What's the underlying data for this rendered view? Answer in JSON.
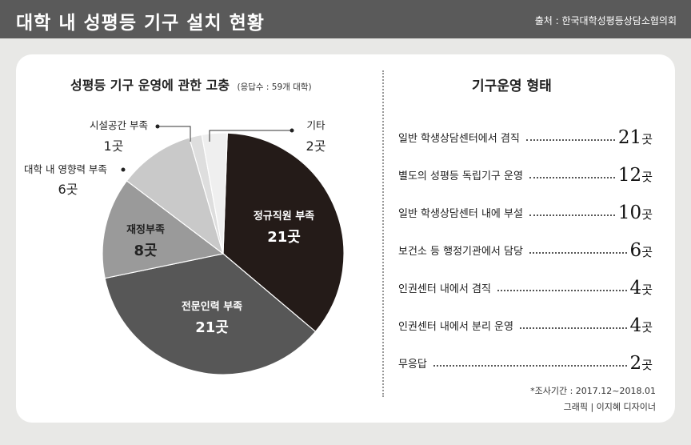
{
  "header": {
    "title": "대학 내 성평등 기구 설치 현황",
    "source": "출처 : 한국대학성평등상담소협의회"
  },
  "left_panel": {
    "title": "성평등 기구 운영에 관한 고충",
    "subtitle": "(응답수 : 59개 대학)"
  },
  "right_panel": {
    "title": "기구운영 형태",
    "rows": [
      {
        "label": "일반 학생상담센터에서 겸직",
        "value": "21",
        "unit": "곳"
      },
      {
        "label": "별도의 성평등 독립기구 운영",
        "value": "12",
        "unit": "곳"
      },
      {
        "label": "일반 학생상담센터 내에 부설",
        "value": "10",
        "unit": "곳"
      },
      {
        "label": "보건소 등 행정기관에서 담당",
        "value": "6",
        "unit": "곳"
      },
      {
        "label": "인권센터 내에서 겸직",
        "value": "4",
        "unit": "곳"
      },
      {
        "label": "인권센터 내에서 분리 운영",
        "value": "4",
        "unit": "곳"
      },
      {
        "label": "무응답",
        "value": "2",
        "unit": "곳"
      }
    ]
  },
  "notes": {
    "period": "*조사기간 : 2017.12~2018.01",
    "credit": "그래픽 | 이지혜 디자이너"
  },
  "chart_data": {
    "type": "pie",
    "title": "성평등 기구 운영에 관한 고충",
    "unit": "곳",
    "slices": [
      {
        "label": "정규직원 부족",
        "display": "21곳",
        "value": 21,
        "color": "#241b18"
      },
      {
        "label": "전문인력 부족",
        "display": "21곳",
        "value": 21,
        "color": "#575757"
      },
      {
        "label": "재정부족",
        "display": "8곳",
        "value": 8,
        "color": "#9a9a9a"
      },
      {
        "label": "대학 내 영향력 부족",
        "display": "6곳",
        "value": 6,
        "color": "#c9c9c9"
      },
      {
        "label": "시설공간 부족",
        "display": "1곳",
        "value": 1,
        "color": "#dedede"
      },
      {
        "label": "기타",
        "display": "2곳",
        "value": 2,
        "color": "#efefef"
      }
    ]
  }
}
